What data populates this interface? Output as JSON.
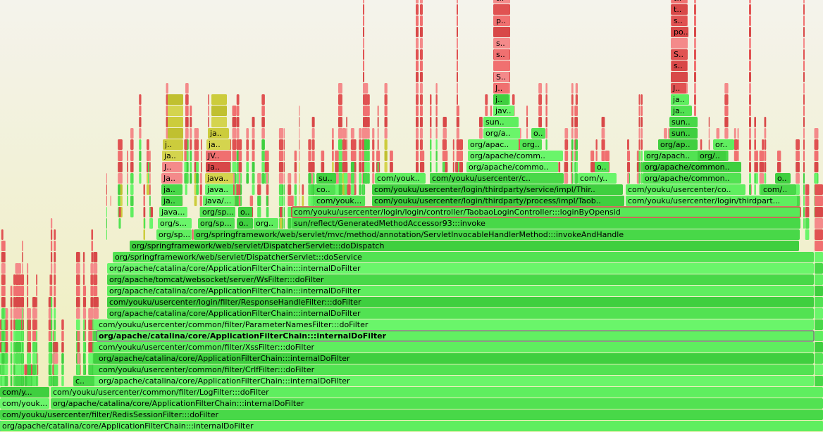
{
  "frames": [
    "org/apache/catalina/core/ApplicationFilterChain:::internalDoFilter",
    "com/youku/usercenter/filter/RedisSessionFilter:::doFilter",
    "com/youk...",
    "org/apache/catalina/core/ApplicationFilterChain:::internalDoFilter",
    "com/y...",
    "com/youku/usercenter/common/filter/LogFilter:::doFilter",
    "c..",
    "org/apache/catalina/core/ApplicationFilterChain:::internalDoFilter",
    "com/youku/usercenter/common/filter/CrlfFilter:::doFilter",
    "org/apache/catalina/core/ApplicationFilterChain:::internalDoFilter",
    "com/youku/usercenter/common/filter/XssFilter:::doFilter",
    "org/apache/catalina/core/ApplicationFilterChain:::internalDoFilter",
    "com/youku/usercenter/common/filter/ParameterNamesFilter:::doFilter",
    "org/apache/catalina/core/ApplicationFilterChain:::internalDoFilter",
    "com/youku/usercenter/login/filter/ResponseHandleFilter:::doFilter",
    "org/apache/catalina/core/ApplicationFilterChain:::internalDoFilter",
    "org/apache/tomcat/websocket/server/WsFilter:::doFilter",
    "org/apache/catalina/core/ApplicationFilterChain:::internalDoFilter",
    "org/springframework/web/servlet/DispatcherServlet:::doService",
    "org/springframework/web/servlet/DispatcherServlet:::doDispatch",
    "org/sp...",
    "org/springframework/web/servlet/mvc/method/annotation/ServletInvocableHandlerMethod:::invokeAndHandle",
    "org/s...",
    "org/sp...",
    "o..",
    "org..",
    "sun/reflect/GeneratedMethodAccessor93:::invoke",
    "java...",
    "org/sp...",
    "o..",
    "com/youku/usercenter/login/login/controller/TaobaoLoginController:::loginByOpensid",
    "ja..",
    "java/...",
    "com/youk...",
    "com/youku/usercenter/login/thirdparty/process/impl/Taob..",
    "com/youku/usercenter/login/thirdpart...",
    "ja..",
    "java..",
    "co..",
    "com/youku/usercenter/login/thirdparty/service/impl/Thir..",
    "com/youku/usercenter/co..",
    "com/..",
    "Ja..",
    "java..",
    "su..",
    "com/youk..",
    "com/youku/usercenter/c..",
    "com/y..",
    "org/apache/common..",
    "o..",
    "J..",
    "Ja..",
    "org/apache/commo..",
    "o..",
    "org/apache/common..",
    "ja..",
    "JV..",
    "org/apache/comm..",
    "org/apach..",
    "org/..",
    "j..",
    "ja..",
    "org/apac..",
    "org..",
    "org/ap..",
    "or..",
    "ja..",
    "org/a..",
    "o..",
    "sun..",
    "sun..",
    "sun..",
    "jav..",
    "ja..",
    "j..",
    "ja..",
    "J..",
    "J..",
    "S..",
    "s..",
    "s..",
    "S..",
    "s..",
    "po..",
    "p..",
    "s..",
    "t..",
    "t..",
    "t.."
  ]
}
